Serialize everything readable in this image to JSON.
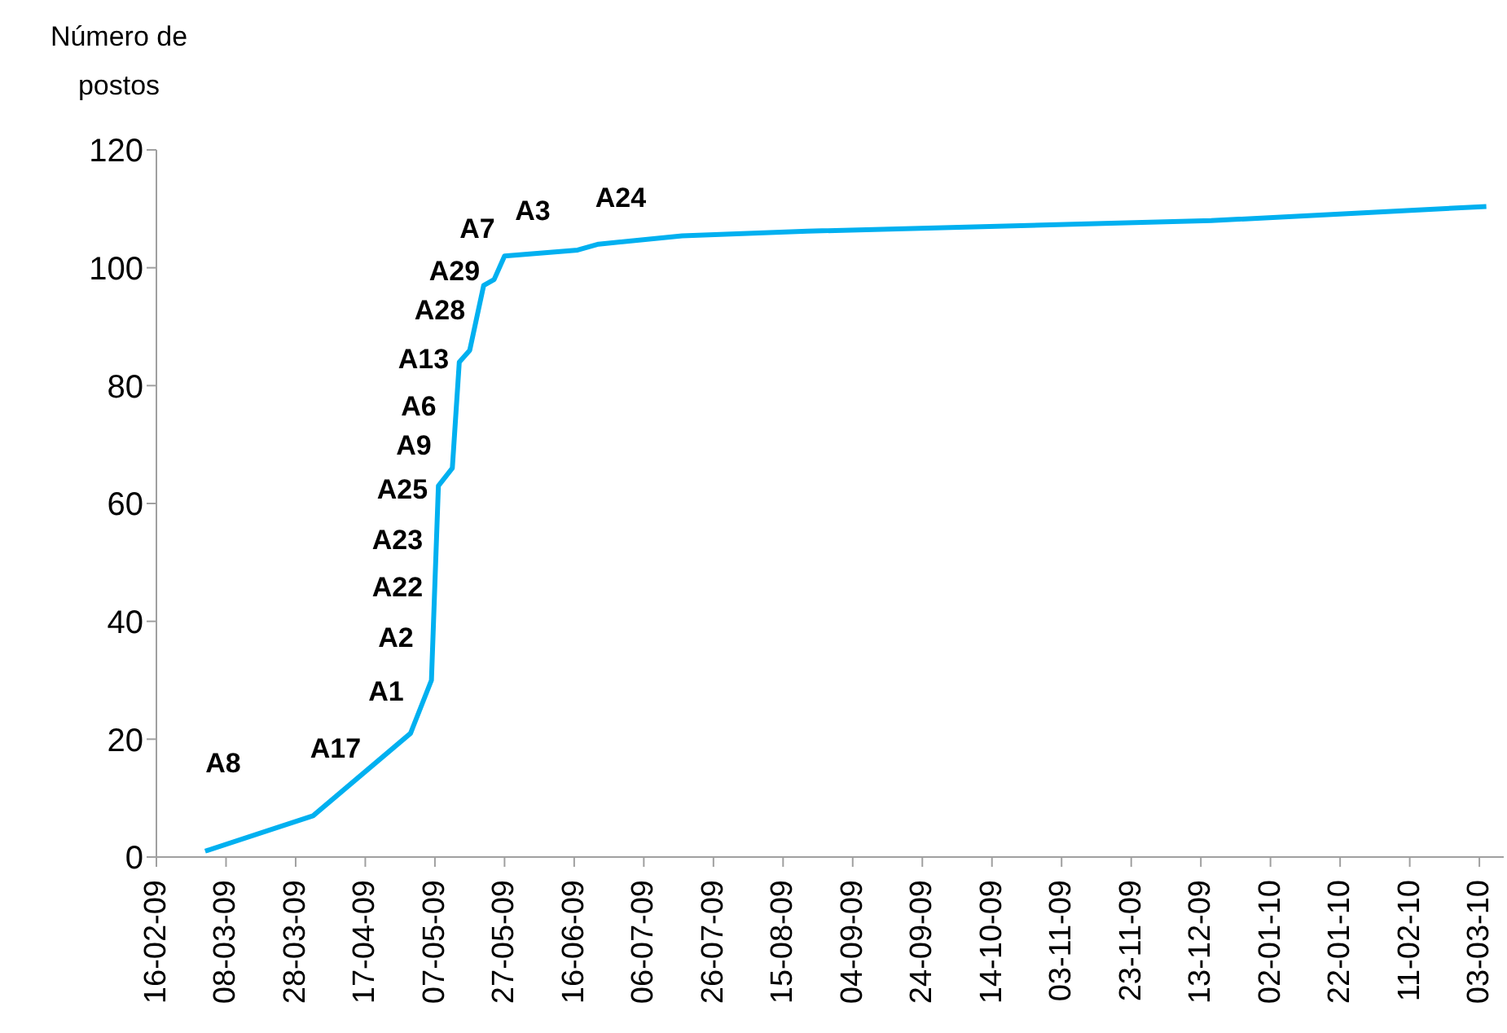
{
  "chart_data": {
    "type": "line",
    "ylabel": "Número de postos",
    "grid": false,
    "legend": false,
    "marker": "none",
    "line_style": "solid",
    "xlim": [
      "2009-02-16",
      "2010-03-10"
    ],
    "xticks": [
      {
        "value": "2009-02-16",
        "label": "16-02-09"
      },
      {
        "value": "2009-03-08",
        "label": "08-03-09"
      },
      {
        "value": "2009-03-28",
        "label": "28-03-09"
      },
      {
        "value": "2009-04-17",
        "label": "17-04-09"
      },
      {
        "value": "2009-05-07",
        "label": "07-05-09"
      },
      {
        "value": "2009-05-27",
        "label": "27-05-09"
      },
      {
        "value": "2009-06-16",
        "label": "16-06-09"
      },
      {
        "value": "2009-07-06",
        "label": "06-07-09"
      },
      {
        "value": "2009-07-26",
        "label": "26-07-09"
      },
      {
        "value": "2009-08-15",
        "label": "15-08-09"
      },
      {
        "value": "2009-09-04",
        "label": "04-09-09"
      },
      {
        "value": "2009-09-24",
        "label": "24-09-09"
      },
      {
        "value": "2009-10-14",
        "label": "14-10-09"
      },
      {
        "value": "2009-11-03",
        "label": "03-11-09"
      },
      {
        "value": "2009-11-23",
        "label": "23-11-09"
      },
      {
        "value": "2009-12-13",
        "label": "13-12-09"
      },
      {
        "value": "2010-01-02",
        "label": "02-01-10"
      },
      {
        "value": "2010-01-22",
        "label": "22-01-10"
      },
      {
        "value": "2010-02-11",
        "label": "11-02-10"
      },
      {
        "value": "2010-03-03",
        "label": "03-03-10"
      }
    ],
    "ylim": [
      0,
      120
    ],
    "yticks": [
      0,
      20,
      40,
      60,
      80,
      100,
      120
    ],
    "x": [
      "2009-03-02",
      "2009-04-02",
      "2009-04-30",
      "2009-05-06",
      "2009-05-08",
      "2009-05-12",
      "2009-05-14",
      "2009-05-17",
      "2009-05-21",
      "2009-05-24",
      "2009-05-27",
      "2009-06-17",
      "2009-06-23",
      "2009-07-17",
      "2009-08-22",
      "2009-12-16",
      "2010-03-05"
    ],
    "series": [
      {
        "color": "#00b0f0",
        "values": [
          1,
          7,
          21,
          30,
          63,
          66,
          84,
          86,
          97,
          98,
          102,
          103,
          104,
          105.4,
          106.2,
          108,
          110.4
        ]
      }
    ],
    "annotations": [
      "A8",
      "A17",
      "A1",
      "A2",
      "A22",
      "A23",
      "A25",
      "A9",
      "A6",
      "A13",
      "A28",
      "A29",
      "A7",
      "A3",
      "A24"
    ]
  }
}
